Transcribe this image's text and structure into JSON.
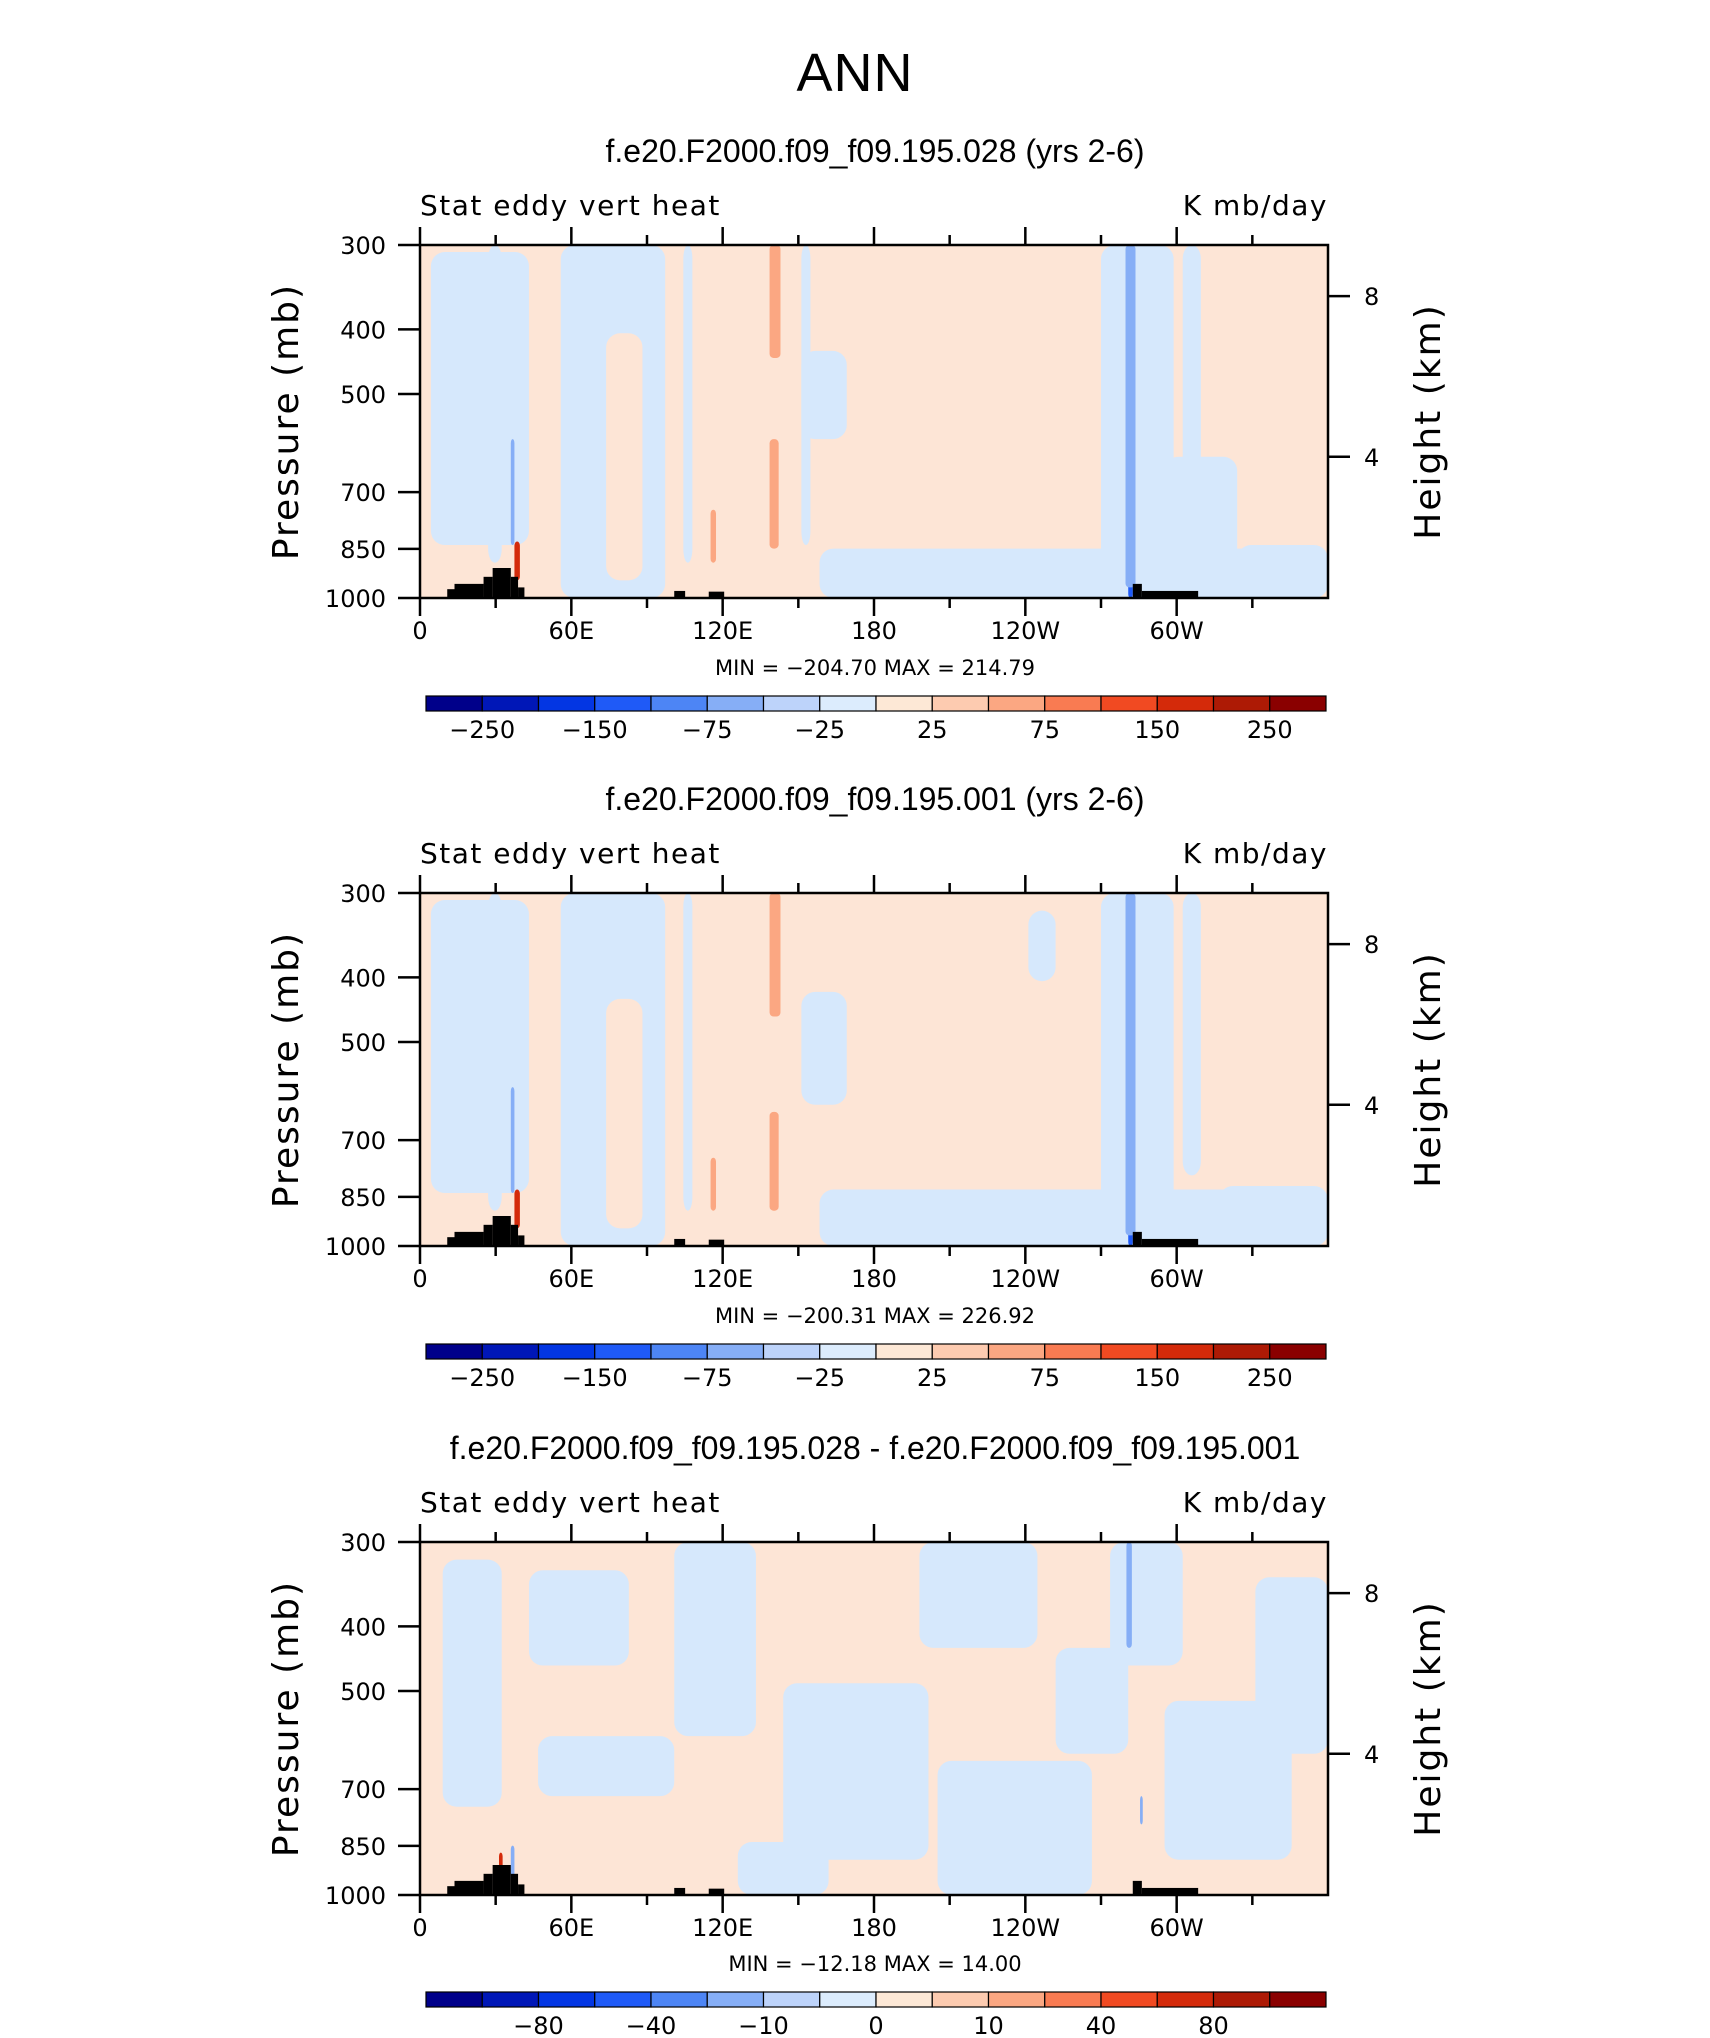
{
  "figure_title": "ANN",
  "colors": {
    "light_blue": "#d6e8fc",
    "light_peach": "#fde5d6",
    "land": "#000000"
  },
  "chart_data": [
    {
      "type": "heatmap",
      "title": "f.e20.F2000.f09_f09.195.028 (yrs 2-6)",
      "subtitle_left": "Stat eddy vert heat",
      "subtitle_right": "K mb/day",
      "ylabel": "Pressure (mb)",
      "ylabel_right": "Height (km)",
      "y_ticks": [
        "300",
        "400",
        "500",
        "700",
        "850",
        "1000"
      ],
      "y_ticks_right": [
        "8",
        "4"
      ],
      "x_ticks": [
        "0",
        "60E",
        "120E",
        "180",
        "120W",
        "60W"
      ],
      "stats": "MIN = −204.70   MAX = 214.79",
      "colorbar_labels": [
        "−250",
        "−150",
        "−75",
        "−25",
        "25",
        "75",
        "150",
        "250"
      ],
      "colorbar_colors": [
        "#00008a",
        "#0017b7",
        "#0336e3",
        "#1f5af7",
        "#4d85f5",
        "#86aef6",
        "#bdd3fa",
        "#dcecfd",
        "#fde8d6",
        "#fdcbb0",
        "#fba782",
        "#f97b52",
        "#f14a22",
        "#d42a0a",
        "#ad1a05",
        "#8a0000"
      ]
    },
    {
      "type": "heatmap",
      "title": "f.e20.F2000.f09_f09.195.001 (yrs 2-6)",
      "subtitle_left": "Stat eddy vert heat",
      "subtitle_right": "K mb/day",
      "ylabel": "Pressure (mb)",
      "ylabel_right": "Height (km)",
      "y_ticks": [
        "300",
        "400",
        "500",
        "700",
        "850",
        "1000"
      ],
      "y_ticks_right": [
        "8",
        "4"
      ],
      "x_ticks": [
        "0",
        "60E",
        "120E",
        "180",
        "120W",
        "60W"
      ],
      "stats": "MIN = −200.31   MAX = 226.92",
      "colorbar_labels": [
        "−250",
        "−150",
        "−75",
        "−25",
        "25",
        "75",
        "150",
        "250"
      ],
      "colorbar_colors": [
        "#00008a",
        "#0017b7",
        "#0336e3",
        "#1f5af7",
        "#4d85f5",
        "#86aef6",
        "#bdd3fa",
        "#dcecfd",
        "#fde8d6",
        "#fdcbb0",
        "#fba782",
        "#f97b52",
        "#f14a22",
        "#d42a0a",
        "#ad1a05",
        "#8a0000"
      ]
    },
    {
      "type": "heatmap",
      "title": "f.e20.F2000.f09_f09.195.028 - f.e20.F2000.f09_f09.195.001",
      "subtitle_left": "Stat eddy vert heat",
      "subtitle_right": "K mb/day",
      "ylabel": "Pressure (mb)",
      "ylabel_right": "Height (km)",
      "y_ticks": [
        "300",
        "400",
        "500",
        "700",
        "850",
        "1000"
      ],
      "y_ticks_right": [
        "8",
        "4"
      ],
      "x_ticks": [
        "0",
        "60E",
        "120E",
        "180",
        "120W",
        "60W"
      ],
      "stats": "MIN = −12.18   MAX =   14.00",
      "colorbar_labels": [
        "−80",
        "−40",
        "−10",
        "0",
        "10",
        "40",
        "80"
      ],
      "colorbar_colors": [
        "#00008a",
        "#0017b7",
        "#0336e3",
        "#1f5af7",
        "#4d85f5",
        "#86aef6",
        "#bdd3fa",
        "#dcecfd",
        "#fde8d6",
        "#fdcbb0",
        "#fba782",
        "#f97b52",
        "#f14a22",
        "#d42a0a",
        "#ad1a05",
        "#8a0000"
      ]
    }
  ]
}
